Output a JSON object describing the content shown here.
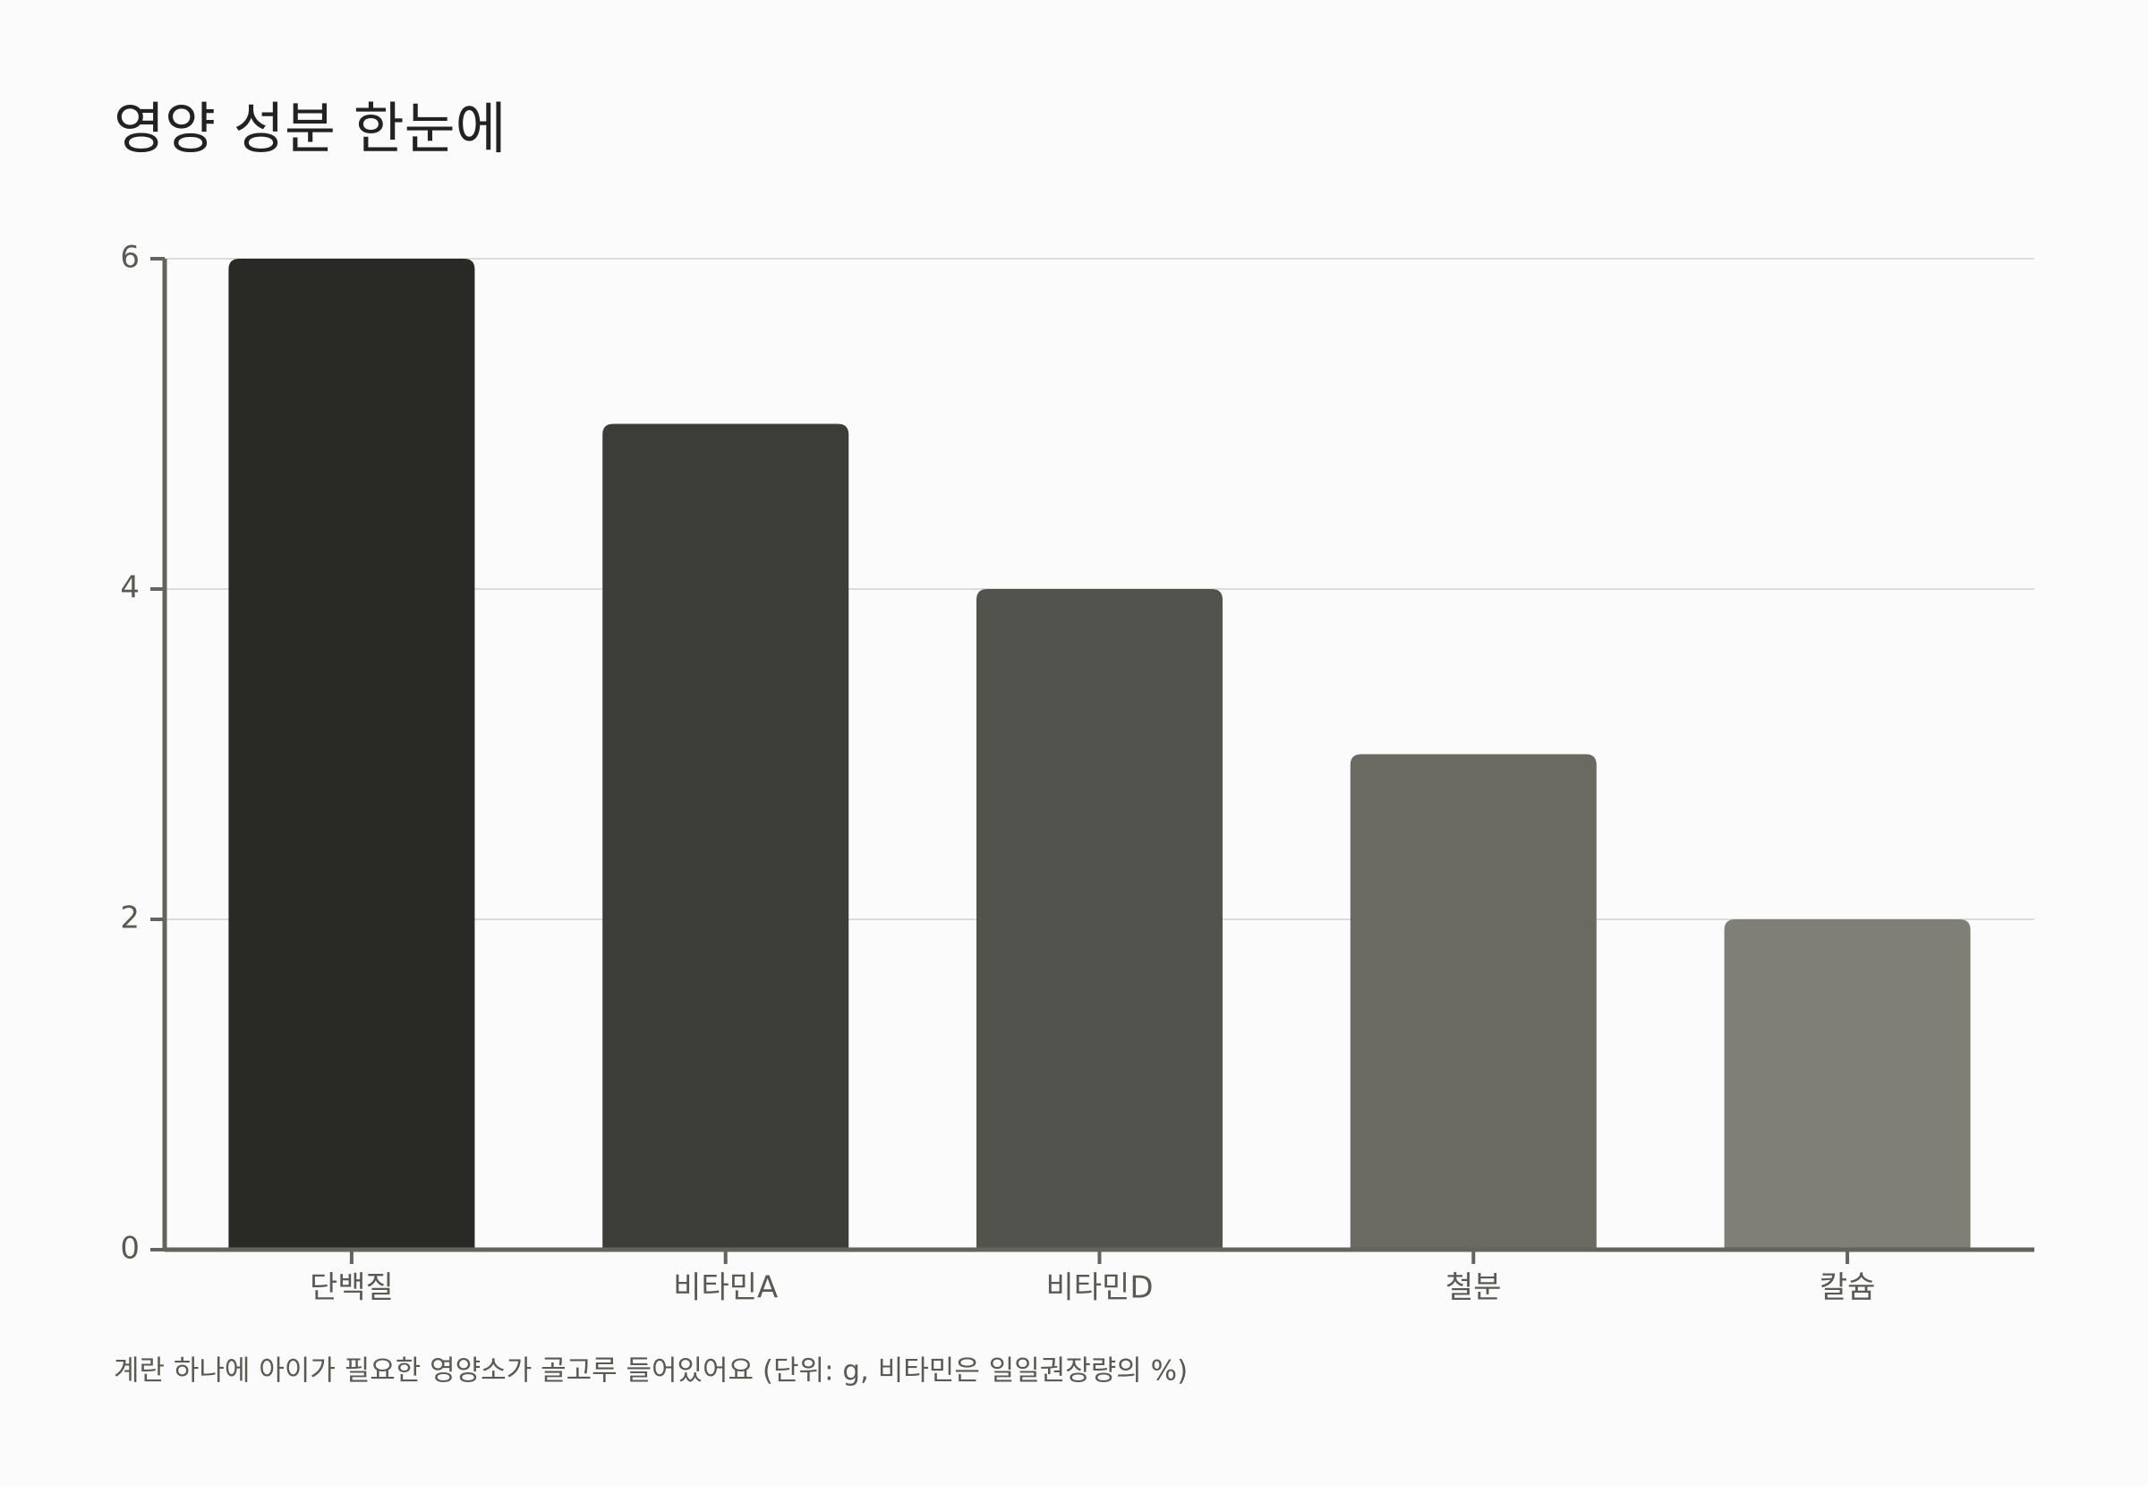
{
  "chart_data": {
    "type": "bar",
    "title": "영양 성분 한눈에",
    "categories": [
      "단백질",
      "비타민A",
      "비타민D",
      "철분",
      "칼슘"
    ],
    "values": [
      6,
      5,
      4,
      3,
      2
    ],
    "colors": [
      "#292a25",
      "#3d3d38",
      "#52534d",
      "#6a6a62",
      "#7f7f78"
    ],
    "ylim": [
      0,
      6
    ],
    "yticks": [
      0,
      2,
      4,
      6
    ],
    "grid": true,
    "note": "계란 하나에 아이가 필요한 영양소가 골고루 들어있어요 (단위: g, 비타민은 일일권장량의 %)"
  }
}
